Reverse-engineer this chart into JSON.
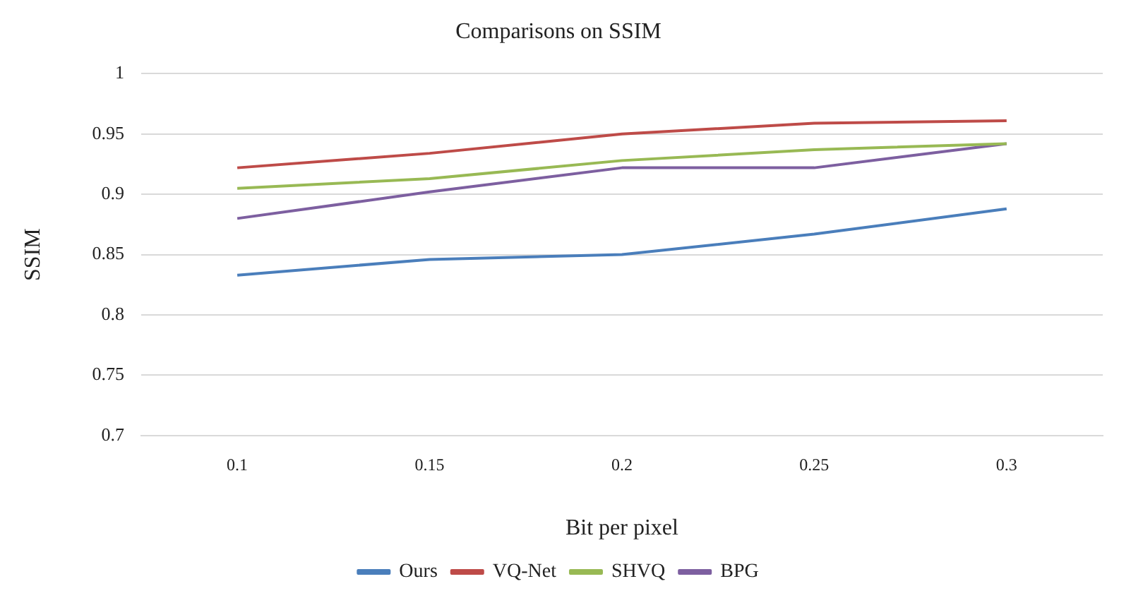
{
  "chart_data": {
    "type": "line",
    "title": "Comparisons on SSIM",
    "xlabel": "Bit per pixel",
    "ylabel": "SSIM",
    "categories": [
      "0.1",
      "0.15",
      "0.2",
      "0.25",
      "0.3"
    ],
    "series": [
      {
        "name": "Ours",
        "color": "#4a7ebb",
        "values": [
          0.833,
          0.846,
          0.85,
          0.867,
          0.888
        ]
      },
      {
        "name": "VQ-Net",
        "color": "#be4b48",
        "values": [
          0.922,
          0.934,
          0.95,
          0.959,
          0.961
        ]
      },
      {
        "name": "SHVQ",
        "color": "#98b954",
        "values": [
          0.905,
          0.913,
          0.928,
          0.937,
          0.942
        ]
      },
      {
        "name": "BPG",
        "color": "#7d5fa0",
        "values": [
          0.88,
          0.902,
          0.922,
          0.922,
          0.942
        ]
      }
    ],
    "ylim": [
      0.7,
      1
    ],
    "yticks": [
      0.7,
      0.75,
      0.8,
      0.85,
      0.9,
      0.95,
      1
    ],
    "grid": "y",
    "legend": "bottom",
    "marker": "none",
    "line_style": "solid"
  }
}
